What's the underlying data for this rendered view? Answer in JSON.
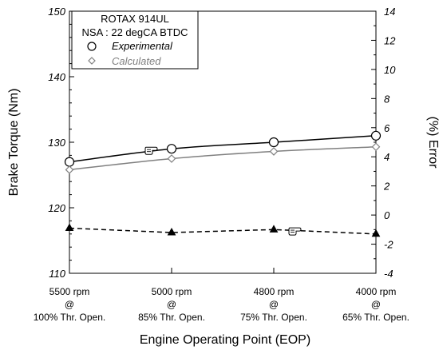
{
  "chart_data": {
    "type": "line",
    "x_categories": [
      [
        "5500 rpm",
        "@",
        "100% Thr. Open."
      ],
      [
        "5000 rpm",
        "@",
        "85% Thr. Open."
      ],
      [
        "4800 rpm",
        "@",
        "75% Thr. Open."
      ],
      [
        "4000 rpm",
        "@",
        "65% Thr. Open."
      ]
    ],
    "xlabel": "Engine Operating Point (EOP)",
    "ylabel_left": "Brake Torque (Nm)",
    "ylabel_right": "(%) Error",
    "ylim_left": [
      110,
      150
    ],
    "yticks_left": [
      "110",
      "120",
      "130",
      "140",
      "150"
    ],
    "ylim_right": [
      -4,
      14
    ],
    "yticks_right": [
      "-4",
      "-2",
      "0",
      "2",
      "4",
      "6",
      "8",
      "10",
      "12",
      "14"
    ],
    "legend": {
      "title_line1": "ROTAX 914UL",
      "title_line2": "NSA : 22 degCA BTDC",
      "entries": [
        "Experimental",
        "Calculated"
      ],
      "placement": "top-left"
    },
    "series": [
      {
        "name": "Experimental",
        "axis": "left",
        "marker": "circle",
        "color": "#000000",
        "values": [
          127.0,
          129.0,
          130.0,
          131.0
        ]
      },
      {
        "name": "Calculated",
        "axis": "left",
        "marker": "diamond",
        "color": "#808080",
        "values": [
          125.8,
          127.5,
          128.6,
          129.3
        ]
      },
      {
        "axis": "right",
        "marker": "triangle",
        "style": "dashed",
        "color": "#000000",
        "values": [
          -0.9,
          -1.2,
          -1.0,
          -1.3
        ]
      }
    ],
    "annotations": [
      {
        "type": "pointing-hand-icon",
        "target_series": 0,
        "near_category": 1
      },
      {
        "type": "pointing-hand-icon",
        "target_series": 2,
        "near_category": 2
      }
    ]
  }
}
